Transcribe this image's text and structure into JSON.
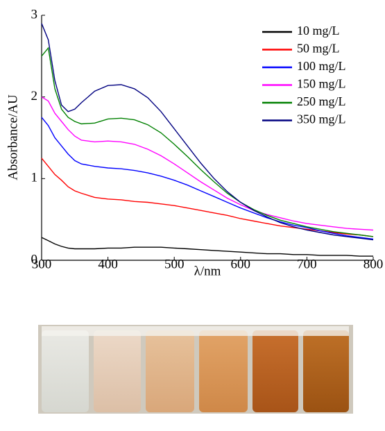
{
  "chart_data": {
    "type": "line",
    "xlabel": "λ/nm",
    "ylabel": "Absorbance/AU",
    "x": [
      300,
      310,
      320,
      330,
      340,
      350,
      360,
      380,
      400,
      420,
      440,
      460,
      480,
      500,
      520,
      540,
      560,
      580,
      600,
      620,
      640,
      660,
      680,
      700,
      720,
      740,
      760,
      780,
      800
    ],
    "xlim": [
      300,
      800
    ],
    "xticks": [
      300,
      400,
      500,
      600,
      700,
      800
    ],
    "ylim": [
      0,
      3
    ],
    "yticks": [
      0,
      1,
      2,
      3
    ],
    "legend": "upper right",
    "series": [
      {
        "name": "10 mg/L",
        "color": "#000000",
        "values": [
          0.28,
          0.24,
          0.2,
          0.17,
          0.15,
          0.14,
          0.14,
          0.14,
          0.15,
          0.15,
          0.16,
          0.16,
          0.16,
          0.15,
          0.14,
          0.13,
          0.12,
          0.11,
          0.1,
          0.09,
          0.08,
          0.08,
          0.07,
          0.07,
          0.06,
          0.06,
          0.06,
          0.05,
          0.05
        ]
      },
      {
        "name": "50 mg/L",
        "color": "#ff0000",
        "values": [
          1.25,
          1.15,
          1.05,
          0.98,
          0.9,
          0.85,
          0.82,
          0.77,
          0.75,
          0.74,
          0.72,
          0.71,
          0.69,
          0.67,
          0.64,
          0.61,
          0.58,
          0.55,
          0.51,
          0.48,
          0.45,
          0.42,
          0.4,
          0.38,
          0.36,
          0.34,
          0.32,
          0.31,
          0.29
        ]
      },
      {
        "name": "100 mg/L",
        "color": "#0000ff",
        "values": [
          1.75,
          1.65,
          1.5,
          1.4,
          1.3,
          1.22,
          1.18,
          1.15,
          1.13,
          1.12,
          1.1,
          1.07,
          1.03,
          0.98,
          0.92,
          0.85,
          0.78,
          0.71,
          0.64,
          0.58,
          0.52,
          0.47,
          0.43,
          0.4,
          0.36,
          0.33,
          0.3,
          0.28,
          0.26
        ]
      },
      {
        "name": "150 mg/L",
        "color": "#ff00ff",
        "values": [
          2.0,
          1.95,
          1.8,
          1.7,
          1.6,
          1.52,
          1.47,
          1.45,
          1.46,
          1.45,
          1.42,
          1.36,
          1.28,
          1.18,
          1.07,
          0.96,
          0.86,
          0.76,
          0.68,
          0.61,
          0.56,
          0.52,
          0.48,
          0.45,
          0.43,
          0.41,
          0.39,
          0.38,
          0.37
        ]
      },
      {
        "name": "250 mg/L",
        "color": "#008000",
        "values": [
          2.5,
          2.6,
          2.1,
          1.85,
          1.75,
          1.7,
          1.67,
          1.68,
          1.73,
          1.74,
          1.72,
          1.66,
          1.56,
          1.42,
          1.27,
          1.11,
          0.96,
          0.82,
          0.71,
          0.62,
          0.55,
          0.49,
          0.45,
          0.41,
          0.38,
          0.35,
          0.33,
          0.31,
          0.29
        ]
      },
      {
        "name": "350 mg/L",
        "color": "#000080",
        "values": [
          2.9,
          2.7,
          2.2,
          1.9,
          1.82,
          1.85,
          1.93,
          2.07,
          2.14,
          2.15,
          2.1,
          1.99,
          1.82,
          1.61,
          1.4,
          1.19,
          1.0,
          0.84,
          0.71,
          0.61,
          0.53,
          0.46,
          0.41,
          0.37,
          0.34,
          0.31,
          0.29,
          0.27,
          0.25
        ]
      }
    ]
  }
}
